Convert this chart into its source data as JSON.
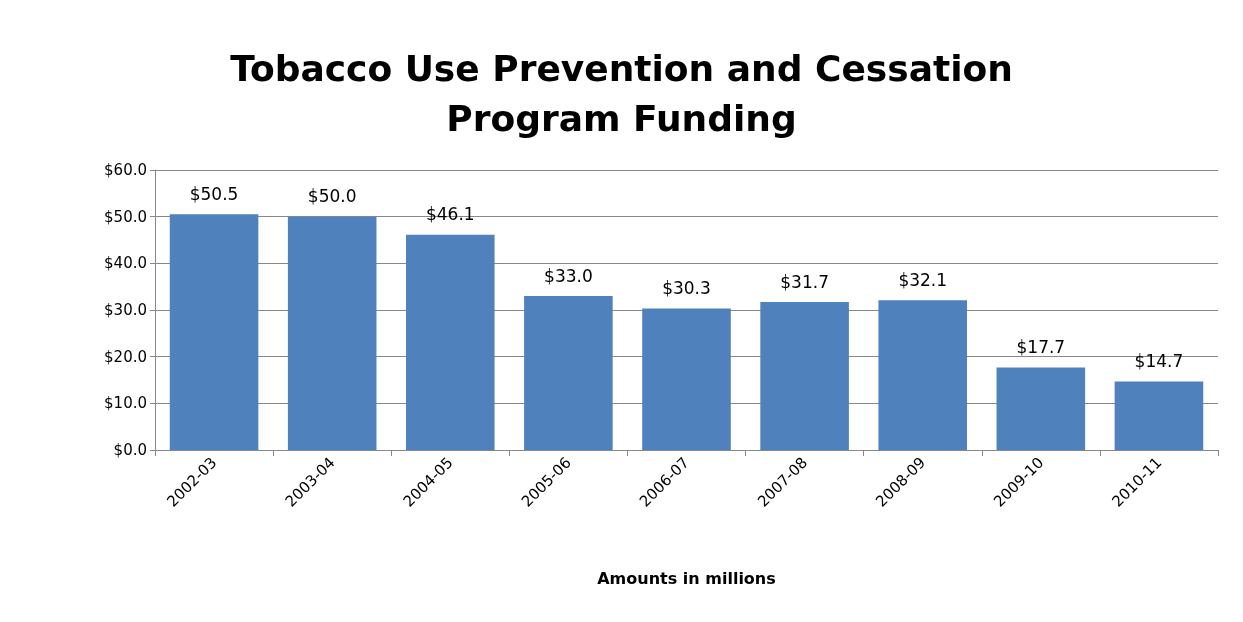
{
  "chart_data": {
    "type": "bar",
    "title": "Tobacco Use Prevention and Cessation\nProgram Funding",
    "xlabel": "Amounts in millions",
    "categories": [
      "2002-03",
      "2003-04",
      "2004-05",
      "2005-06",
      "2006-07",
      "2007-08",
      "2008-09",
      "2009-10",
      "2010-11"
    ],
    "values": [
      50.5,
      50.0,
      46.1,
      33.0,
      30.3,
      31.7,
      32.1,
      17.7,
      14.7
    ],
    "value_labels": [
      "$50.5",
      "$50.0",
      "$46.1",
      "$33.0",
      "$30.3",
      "$31.7",
      "$32.1",
      "$17.7",
      "$14.7"
    ],
    "color": "#4f81bd",
    "ylim": [
      0,
      60
    ],
    "yticks": [
      {
        "value": 0,
        "label": "$0.0"
      },
      {
        "value": 10,
        "label": "$10.0"
      },
      {
        "value": 20,
        "label": "$20.0"
      },
      {
        "value": 30,
        "label": "$30.0"
      },
      {
        "value": 40,
        "label": "$40.0"
      },
      {
        "value": 50,
        "label": "$50.0"
      },
      {
        "value": 60,
        "label": "$60.0"
      }
    ],
    "grid": "y"
  }
}
